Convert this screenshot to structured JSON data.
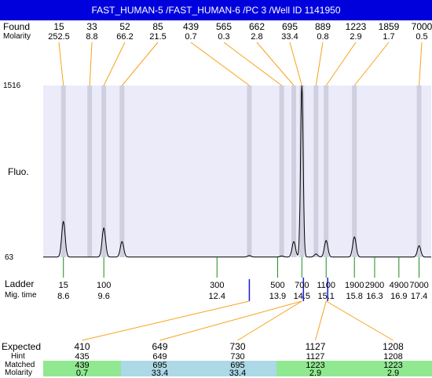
{
  "window_title": "FAST_HUMAN-5 /FAST_HUMAN-6 /PC 3 /Well ID 1141950",
  "row_labels": {
    "found": "Found",
    "molarity": "Molarity",
    "fluo": "Fluo.",
    "ladder": "Ladder",
    "mig_time": "Mig. time",
    "expected": "Expected",
    "hint": "Hint",
    "matched": "Matched",
    "molarity_bottom": "Molarity"
  },
  "y_axis": {
    "max_label": "1516",
    "min_label": "63"
  },
  "colors": {
    "title_bg": "#0000dd",
    "plot_bg": "#ecebfa",
    "band": "#cfcfe0",
    "trace": "#000000",
    "found_line": "#f7a21b",
    "ladder_tick": "#1f8a1f",
    "ladder_blue": "#1a1ad6",
    "matched_green": "#90e890",
    "matched_blue": "#add8e6"
  },
  "found_peaks": [
    {
      "size": "15",
      "molarity": "252.5",
      "mig": 8.6
    },
    {
      "size": "33",
      "molarity": "8.8",
      "mig": 9.25
    },
    {
      "size": "52",
      "molarity": "66.2",
      "mig": 9.6
    },
    {
      "size": "85",
      "molarity": "21.5",
      "mig": 10.05
    },
    {
      "size": "439",
      "molarity": "0.7",
      "mig": 13.2
    },
    {
      "size": "565",
      "molarity": "0.3",
      "mig": 14.0
    },
    {
      "size": "662",
      "molarity": "2.8",
      "mig": 14.3
    },
    {
      "size": "695",
      "molarity": "33.4",
      "mig": 14.5
    },
    {
      "size": "889",
      "molarity": "0.8",
      "mig": 14.85
    },
    {
      "size": "1223",
      "molarity": "2.9",
      "mig": 15.1
    },
    {
      "size": "1859",
      "molarity": "1.7",
      "mig": 15.8
    },
    {
      "size": "7000",
      "molarity": "0.5",
      "mig": 17.4
    }
  ],
  "ladder": [
    {
      "size": "15",
      "time": "8.6"
    },
    {
      "size": "100",
      "time": "9.6"
    },
    {
      "size": "300",
      "time": "12.4"
    },
    {
      "size": "500",
      "time": "13.9"
    },
    {
      "size": "700",
      "time": "14.5"
    },
    {
      "size": "1100",
      "time": "15.1"
    },
    {
      "size": "1900",
      "time": "15.8"
    },
    {
      "size": "2900",
      "time": "16.3"
    },
    {
      "size": "4900",
      "time": "16.9"
    },
    {
      "size": "7000",
      "time": "17.4"
    }
  ],
  "expected_table": [
    {
      "expected": "410",
      "hint": "435",
      "matched": "439",
      "molarity": "0.7",
      "color": "green",
      "mig": 13.2
    },
    {
      "expected": "649",
      "hint": "649",
      "matched": "695",
      "molarity": "33.4",
      "color": "blue",
      "mig": 14.5
    },
    {
      "expected": "730",
      "hint": "730",
      "matched": "695",
      "molarity": "33.4",
      "color": "blue",
      "mig": 14.5
    },
    {
      "expected": "1127",
      "hint": "1127",
      "matched": "1223",
      "molarity": "2.9",
      "color": "green",
      "mig": 15.1
    },
    {
      "expected": "1208",
      "hint": "1208",
      "matched": "1223",
      "molarity": "2.9",
      "color": "green",
      "mig": 15.1
    }
  ],
  "chart_data": {
    "type": "line",
    "title": "FAST_HUMAN-5 /FAST_HUMAN-6 /PC 3 /Well ID 1141950",
    "xlabel": "Mig. time",
    "ylabel": "Fluo.",
    "ylim": [
      63,
      1516
    ],
    "xlim": [
      8.1,
      17.7
    ],
    "background_bands_mig": [
      8.6,
      9.25,
      9.6,
      10.05,
      13.2,
      14.0,
      14.3,
      14.5,
      14.85,
      15.1,
      15.8,
      17.4
    ],
    "trace_peaks": [
      {
        "x": 8.6,
        "height": 300
      },
      {
        "x": 9.6,
        "height": 245
      },
      {
        "x": 10.05,
        "height": 130
      },
      {
        "x": 13.2,
        "height": 12
      },
      {
        "x": 14.0,
        "height": 8
      },
      {
        "x": 14.3,
        "height": 130
      },
      {
        "x": 14.5,
        "height": 1453
      },
      {
        "x": 14.85,
        "height": 25
      },
      {
        "x": 15.1,
        "height": 140
      },
      {
        "x": 15.8,
        "height": 170
      },
      {
        "x": 17.4,
        "height": 95
      }
    ]
  }
}
